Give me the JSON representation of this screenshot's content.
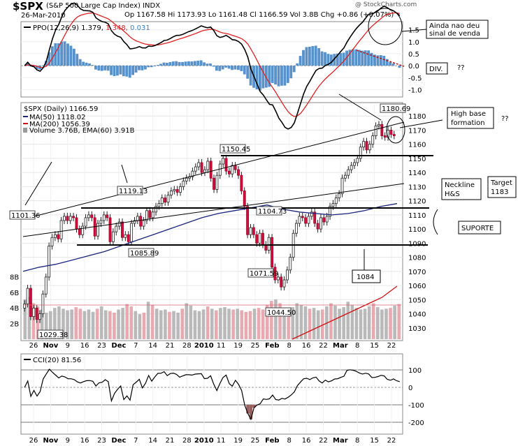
{
  "header": {
    "symbol": "$SPX",
    "name": "(S&P 500 Large Cap Index)  INDX",
    "date": "26-Mar-2010",
    "quote": "Op 1167.58   Hi 1173.93   Lo 1161.48   Cl 1166.59   Vol 3.8B   Chg +0.86 (+0.07%)",
    "watermark": "@ StockCharts.com"
  },
  "chart_data": [
    {
      "type": "line",
      "panel": "PPO",
      "legend": "PPO(12,26,9) 1.379, 1.348, 0.031",
      "legend_parts": {
        "label": "PPO(12,26,9)",
        "ppo": "1.379,",
        "signal": "1.348,",
        "hist": "0.031"
      },
      "y_ticks": [
        "1.5",
        "1.0",
        "0.5",
        "0.0",
        "-0.5",
        "-1.0"
      ],
      "ylim": [
        -1.25,
        1.75
      ],
      "colors": {
        "ppo": "#000000",
        "signal": "#e02020",
        "hist": "#3a7fc4"
      }
    },
    {
      "type": "candlestick",
      "panel": "Price",
      "legend_title": "$SPX (Daily) 1166.59",
      "legend": [
        "MA(50) 1118.02",
        "MA(200) 1056.39",
        "Volume 3.76B, EMA(60) 3.91B"
      ],
      "y_ticks": [
        1180,
        1170,
        1160,
        1150,
        1140,
        1130,
        1120,
        1110,
        1100,
        1090,
        1080,
        1070,
        1060,
        1050,
        1040,
        1030
      ],
      "ylim": [
        1022,
        1188
      ],
      "volume_ticks": [
        "8B",
        "6B",
        "4B",
        "2B"
      ],
      "price_labels": [
        "1180.69",
        "1150.45",
        "1119.13",
        "1101.36",
        "1104.73",
        "1085.89",
        "1071.59",
        "1044.50",
        "1029.38"
      ],
      "close_path": [
        1047,
        1058,
        1038,
        1044,
        1036,
        1040,
        1054,
        1066,
        1088,
        1094,
        1096,
        1093,
        1106,
        1109,
        1106,
        1109,
        1108,
        1100,
        1096,
        1102,
        1108,
        1110,
        1108,
        1095,
        1104,
        1106,
        1110,
        1108,
        1091,
        1098,
        1102,
        1105,
        1094,
        1096,
        1091,
        1104,
        1106,
        1109,
        1102,
        1106,
        1113,
        1108,
        1112,
        1116,
        1118,
        1122,
        1119,
        1124,
        1127,
        1128,
        1126,
        1130,
        1134,
        1136,
        1137,
        1141,
        1144,
        1147,
        1140,
        1142,
        1148,
        1136,
        1128,
        1138,
        1146,
        1150,
        1141,
        1139,
        1145,
        1142,
        1138,
        1127,
        1116,
        1096,
        1101,
        1096,
        1090,
        1097,
        1089,
        1085,
        1094,
        1073,
        1064,
        1066,
        1059,
        1064,
        1071,
        1080,
        1097,
        1104,
        1109,
        1108,
        1104,
        1109,
        1112,
        1104,
        1100,
        1108,
        1105,
        1109,
        1116,
        1118,
        1122,
        1125,
        1136,
        1138,
        1142,
        1145,
        1147,
        1150,
        1158,
        1162,
        1156,
        1160,
        1166,
        1173,
        1174,
        1166,
        1165,
        1170,
        1167,
        1166
      ],
      "ma50": [
        1070,
        1073,
        1075,
        1078,
        1081,
        1084,
        1088,
        1092,
        1096,
        1100,
        1104,
        1108,
        1111,
        1113,
        1115,
        1117,
        1114,
        1112,
        1111,
        1110,
        1111,
        1113,
        1116,
        1118
      ],
      "ma200": [
        980,
        990,
        1000,
        1010,
        1020,
        1030,
        1040,
        1056
      ],
      "volume": [
        5.1,
        5.4,
        4.6,
        4.2,
        3.8,
        3.4,
        3.6,
        4.0,
        4.2,
        3.9,
        3.7,
        3.8,
        4.1,
        3.9,
        3.6,
        3.8,
        3.5,
        3.9,
        4.2,
        3.7,
        3.6,
        3.4,
        3.8,
        4.0,
        4.5,
        4.2,
        3.6,
        3.2,
        3.4,
        4.8,
        4.4,
        3.9,
        3.7,
        3.8,
        3.5,
        3.6,
        3.4,
        3.9,
        4.6,
        4.3,
        3.7,
        3.6,
        3.8,
        4.2,
        3.9,
        3.7,
        4.0,
        4.1,
        3.9,
        3.8,
        3.9,
        3.7,
        3.5,
        3.6,
        3.9,
        4.0,
        3.8,
        4.4,
        4.9,
        5.1,
        4.6,
        4.0,
        3.9,
        4.1,
        4.6,
        4.4,
        4.2,
        3.9,
        4.0,
        3.7,
        3.8,
        4.2,
        4.6,
        4.3,
        3.9,
        4.1,
        4.8,
        4.4,
        4.0,
        3.8,
        3.9,
        4.2,
        4.6,
        4.1,
        3.8,
        3.9,
        4.0,
        4.3,
        4.5
      ],
      "annotations": {
        "ainda": [
          "Ainda nao deu",
          "sinal de venda"
        ],
        "div": "DIV.",
        "qq1": "??",
        "high_base": [
          "High base",
          "formation"
        ],
        "qq2": "??",
        "neckline": [
          "Neckline",
          "H&S"
        ],
        "target": [
          "Target",
          "1183"
        ],
        "suporte": "SUPORTE",
        "n1084": "1084"
      }
    },
    {
      "type": "line",
      "panel": "CCI",
      "legend": "CCI(20) 81.56",
      "y_ticks": [
        "100",
        "0",
        "-100",
        "-200"
      ],
      "ylim": [
        -260,
        180
      ]
    }
  ],
  "x_axis": {
    "labels": [
      "26",
      "Nov",
      "9",
      "16",
      "23",
      "Dec",
      "7",
      "14",
      "21",
      "28",
      "2010",
      "11",
      "19",
      "25",
      "Feb",
      "8",
      "16",
      "22",
      "Mar",
      "8",
      "15",
      "22"
    ],
    "bold": [
      "Nov",
      "Dec",
      "2010",
      "Feb",
      "Mar"
    ]
  }
}
